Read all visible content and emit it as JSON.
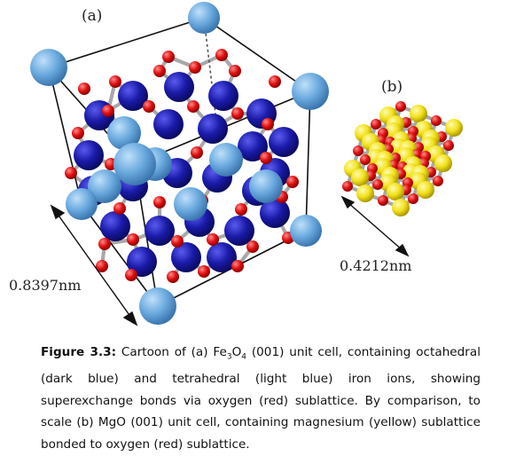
{
  "figure": {
    "panel_a": {
      "label": "(a)",
      "dimension": "0.8397nm"
    },
    "panel_b": {
      "label": "(b)",
      "dimension": "0.4212nm"
    },
    "colors": {
      "octahedral_fe": "#1a1aa8",
      "tetrahedral_fe": "#6aa9de",
      "oxygen": "#e01010",
      "magnesium": "#f2e11a",
      "bond": "#b8b8b8"
    }
  },
  "caption": {
    "lead": "Figure 3.3:",
    "text_1": " Cartoon of (a) Fe",
    "sub_1": "3",
    "text_2": "O",
    "sub_2": "4",
    "text_3": " (001) unit cell, containing octahedral (dark blue) and tetrahedral (light blue) iron ions, showing superexchange bonds via oxygen (red) sublattice.  By comparison, to scale (b) MgO (001) unit cell, containing magnesium (yellow) sublattice bonded to oxygen (red) sublattice."
  }
}
